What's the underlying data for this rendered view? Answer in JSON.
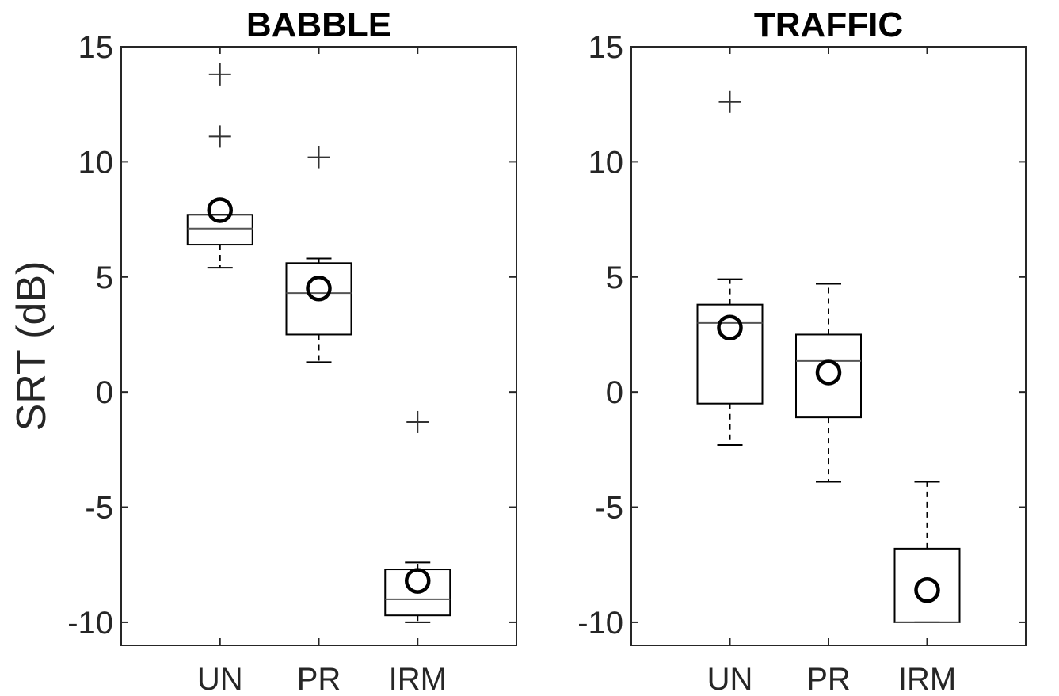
{
  "figure": {
    "ylabel": "SRT (dB)"
  },
  "chart_data": [
    {
      "type": "box",
      "title": "BABBLE",
      "xlabel": "",
      "ylabel": "SRT (dB)",
      "categories": [
        "UN",
        "PR",
        "IRM"
      ],
      "ylim": [
        -11,
        15
      ],
      "yticks": [
        -10,
        -5,
        0,
        5,
        10,
        15
      ],
      "grid": false,
      "boxes": [
        {
          "category": "UN",
          "q1": 6.4,
          "median": 7.1,
          "q3": 7.7,
          "whisker_low": 5.4,
          "whisker_high": 7.7,
          "mean": 7.9,
          "outliers": [
            13.8,
            11.1
          ]
        },
        {
          "category": "PR",
          "q1": 2.5,
          "median": 4.3,
          "q3": 5.6,
          "whisker_low": 1.3,
          "whisker_high": 5.8,
          "mean": 4.5,
          "outliers": [
            10.2
          ]
        },
        {
          "category": "IRM",
          "q1": -9.7,
          "median": -9.0,
          "q3": -7.7,
          "whisker_low": -10.0,
          "whisker_high": -7.4,
          "mean": -8.2,
          "outliers": [
            -1.3
          ]
        }
      ]
    },
    {
      "type": "box",
      "title": "TRAFFIC",
      "xlabel": "",
      "ylabel": "",
      "categories": [
        "UN",
        "PR",
        "IRM"
      ],
      "ylim": [
        -11,
        15
      ],
      "yticks": [
        -10,
        -5,
        0,
        5,
        10,
        15
      ],
      "grid": false,
      "boxes": [
        {
          "category": "UN",
          "q1": -0.5,
          "median": 3.0,
          "q3": 3.8,
          "whisker_low": -2.3,
          "whisker_high": 4.9,
          "mean": 2.8,
          "outliers": [
            12.6
          ]
        },
        {
          "category": "PR",
          "q1": -1.1,
          "median": 1.35,
          "q3": 2.5,
          "whisker_low": -3.9,
          "whisker_high": 4.7,
          "mean": 0.85,
          "outliers": []
        },
        {
          "category": "IRM",
          "q1": -10.0,
          "median": -10.0,
          "q3": -6.8,
          "whisker_low": -10.0,
          "whisker_high": -3.9,
          "mean": -8.6,
          "outliers": []
        }
      ]
    }
  ]
}
